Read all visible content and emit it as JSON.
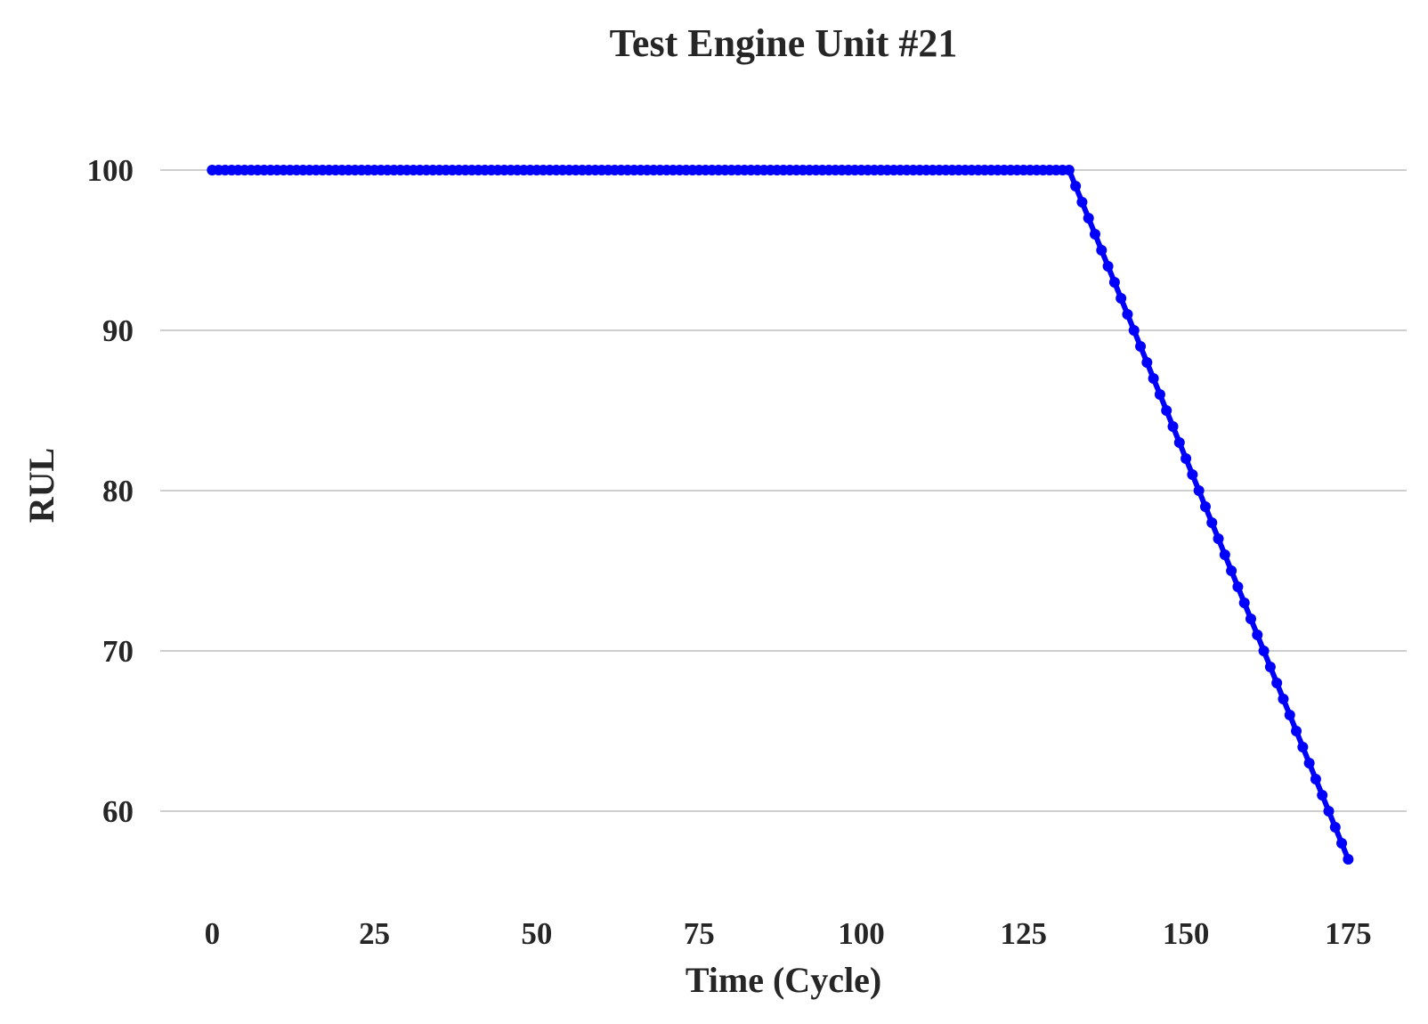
{
  "chart_data": {
    "type": "line",
    "title": "Test Engine Unit #21",
    "xlabel": "Time (Cycle)",
    "ylabel": "RUL",
    "xlim": [
      -8,
      184
    ],
    "ylim": [
      54.5,
      104.5
    ],
    "x_ticks": [
      "0",
      "25",
      "50",
      "75",
      "100",
      "125",
      "150",
      "175"
    ],
    "y_ticks": [
      "60",
      "70",
      "80",
      "90",
      "100"
    ],
    "grid": "horizontal",
    "legend": "none",
    "series": [
      {
        "color": "#0000ff",
        "marker": "circle",
        "flat_value": 100,
        "x_start": 0,
        "x_end": 175,
        "knee_x": 132,
        "end_value": 57
      }
    ]
  }
}
